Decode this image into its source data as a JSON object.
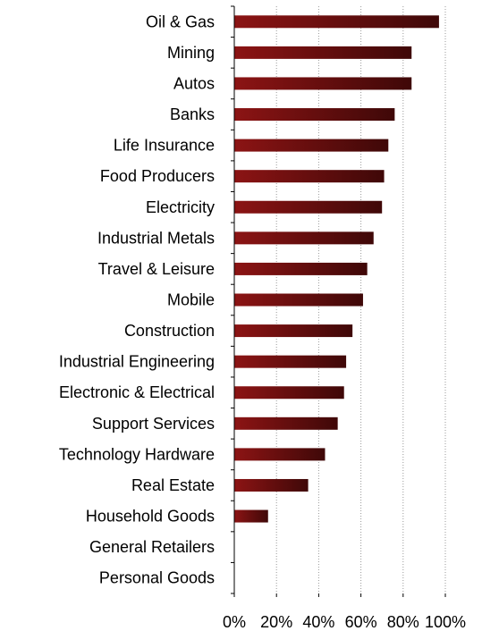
{
  "chart_data": {
    "type": "bar",
    "orientation": "horizontal",
    "categories": [
      "Oil & Gas",
      "Mining",
      "Autos",
      "Banks",
      "Life Insurance",
      "Food Producers",
      "Electricity",
      "Industrial Metals",
      "Travel & Leisure",
      "Mobile",
      "Construction",
      "Industrial Engineering",
      "Electronic & Electrical",
      "Support Services",
      "Technology Hardware",
      "Real Estate",
      "Household Goods",
      "General Retailers",
      "Personal Goods"
    ],
    "values": [
      0.97,
      0.84,
      0.84,
      0.76,
      0.73,
      0.71,
      0.7,
      0.66,
      0.63,
      0.61,
      0.56,
      0.53,
      0.52,
      0.49,
      0.43,
      0.35,
      0.16,
      0,
      0
    ],
    "xticks": [
      "0%",
      "20%",
      "40%",
      "60%",
      "80%",
      "100%"
    ],
    "xlim": [
      0,
      1
    ],
    "title": "",
    "xlabel": "",
    "ylabel": "",
    "grid": "vertical dotted",
    "bar_color_dark": "#3f0808",
    "bar_color_light": "#8c1414"
  }
}
